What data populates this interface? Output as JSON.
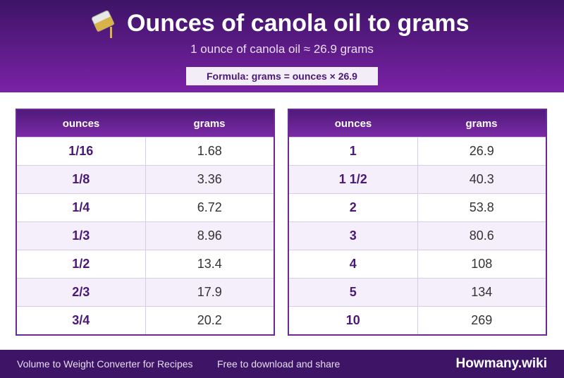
{
  "header": {
    "title": "Ounces of canola oil to grams",
    "subtitle": "1 ounce of canola oil ≈ 26.9 grams",
    "formula": "Formula: grams = ounces × 26.9"
  },
  "tables": [
    {
      "columns": [
        "ounces",
        "grams"
      ],
      "rows": [
        [
          "1/16",
          "1.68"
        ],
        [
          "1/8",
          "3.36"
        ],
        [
          "1/4",
          "6.72"
        ],
        [
          "1/3",
          "8.96"
        ],
        [
          "1/2",
          "13.4"
        ],
        [
          "2/3",
          "17.9"
        ],
        [
          "3/4",
          "20.2"
        ]
      ]
    },
    {
      "columns": [
        "ounces",
        "grams"
      ],
      "rows": [
        [
          "1",
          "26.9"
        ],
        [
          "1 1/2",
          "40.3"
        ],
        [
          "2",
          "53.8"
        ],
        [
          "3",
          "80.6"
        ],
        [
          "4",
          "108"
        ],
        [
          "5",
          "134"
        ],
        [
          "10",
          "269"
        ]
      ]
    }
  ],
  "footer": {
    "left": "Volume to Weight Converter for Recipes",
    "middle": "Free to download and share",
    "brand": "Howmany.wiki"
  }
}
